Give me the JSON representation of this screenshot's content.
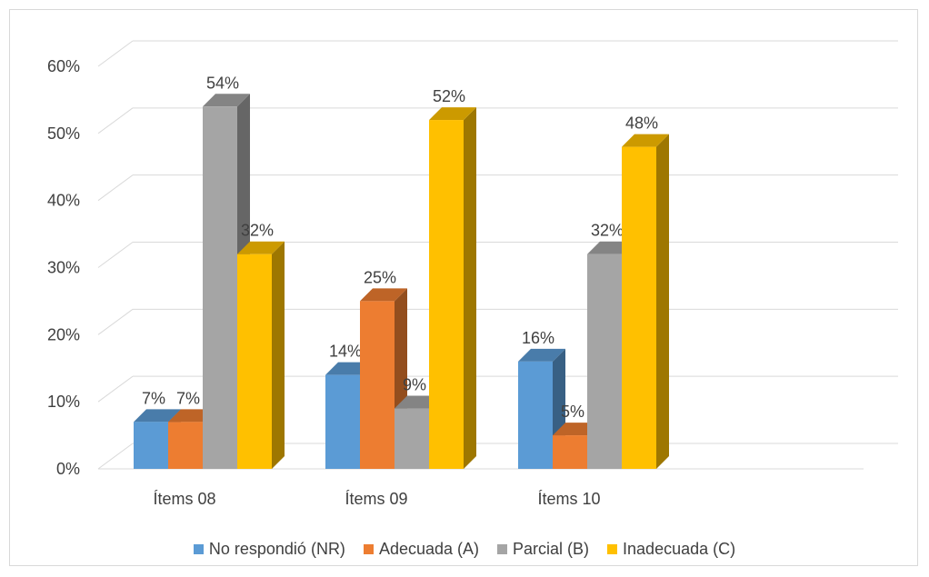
{
  "chart_data": {
    "type": "bar",
    "categories": [
      "Ítems 08",
      "Ítems 09",
      "Ítems 10"
    ],
    "series": [
      {
        "name": "No respondió (NR)",
        "values": [
          7,
          14,
          16
        ],
        "labels": [
          "7%",
          "14%",
          "16%"
        ],
        "color": "#5b9bd5"
      },
      {
        "name": "Adecuada (A)",
        "values": [
          7,
          25,
          5
        ],
        "labels": [
          "7%",
          "25%",
          "5%"
        ],
        "color": "#ed7d31"
      },
      {
        "name": "Parcial (B)",
        "values": [
          54,
          9,
          32
        ],
        "labels": [
          "54%",
          "9%",
          "32%"
        ],
        "color": "#a5a5a5"
      },
      {
        "name": "Inadecuada (C)",
        "values": [
          32,
          52,
          48
        ],
        "labels": [
          "32%",
          "52%",
          "48%"
        ],
        "color": "#ffc000"
      }
    ],
    "yticks": [
      "0%",
      "10%",
      "20%",
      "30%",
      "40%",
      "50%",
      "60%"
    ],
    "ylim": [
      0,
      60
    ],
    "grid": true,
    "legend": "bottom",
    "three_d": true
  }
}
